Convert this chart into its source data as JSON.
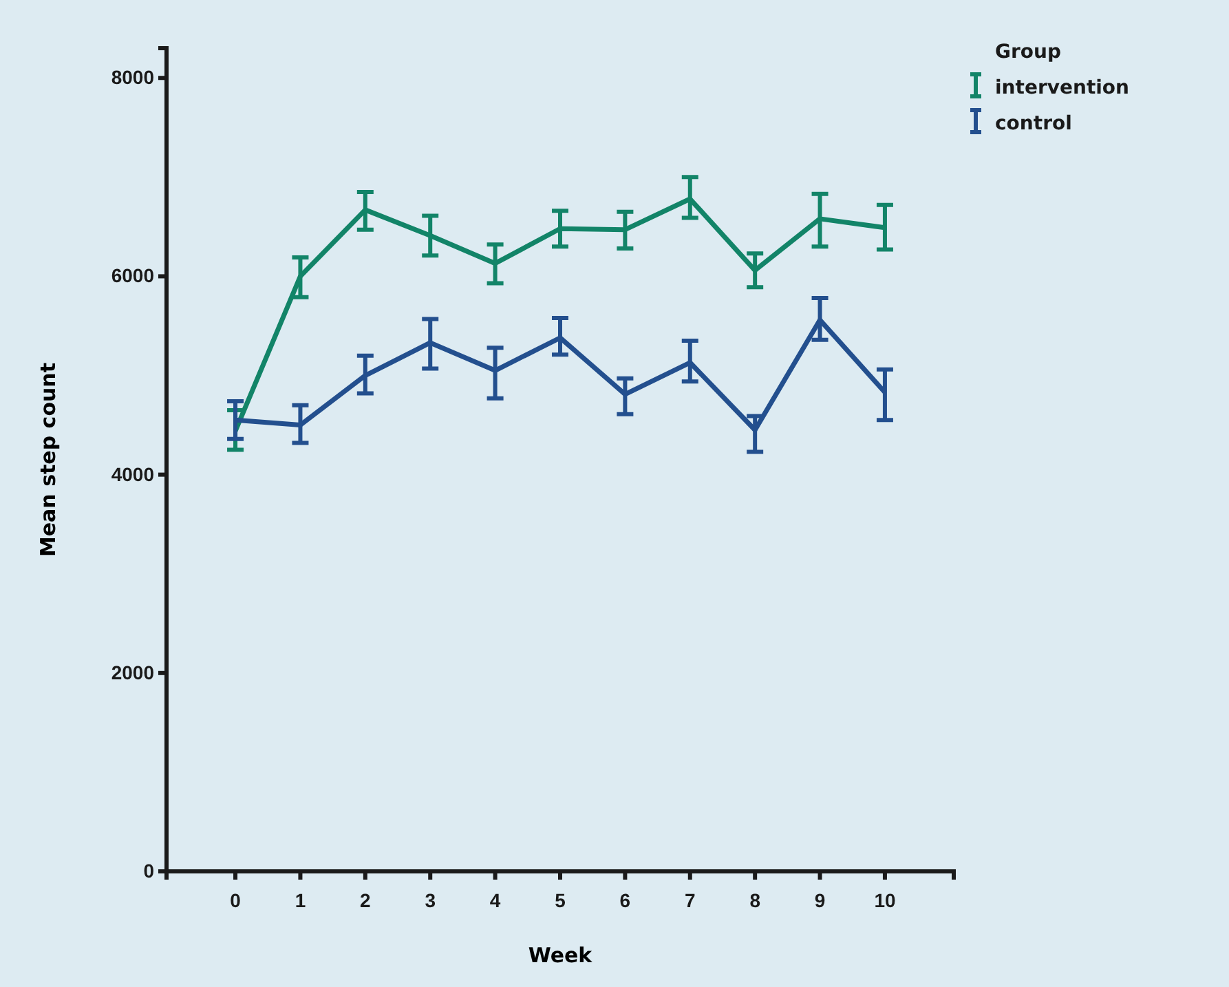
{
  "chart_data": {
    "type": "line",
    "xlabel": "Week",
    "ylabel": "Mean step count",
    "legend_title": "Group",
    "legend": "top right",
    "x": [
      0,
      1,
      2,
      3,
      4,
      5,
      6,
      7,
      8,
      9,
      10
    ],
    "xlim": [
      -1.06,
      11.06
    ],
    "xticks": [
      0,
      1,
      2,
      3,
      4,
      5,
      6,
      7,
      8,
      9,
      10
    ],
    "ylim": [
      0,
      8300
    ],
    "yticks": [
      0,
      2000,
      4000,
      6000,
      8000
    ],
    "grid": false,
    "marker": "none",
    "line_style": "solid",
    "series": [
      {
        "name": "intervention",
        "color": "#128468",
        "values": [
          4440,
          6000,
          6670,
          6410,
          6130,
          6480,
          6470,
          6780,
          6060,
          6580,
          6490
        ],
        "errors": [
          [
            4250,
            4650
          ],
          [
            5790,
            6190
          ],
          [
            6470,
            6850
          ],
          [
            6210,
            6610
          ],
          [
            5930,
            6320
          ],
          [
            6300,
            6660
          ],
          [
            6280,
            6650
          ],
          [
            6590,
            7000
          ],
          [
            5890,
            6230
          ],
          [
            6300,
            6830
          ],
          [
            6270,
            6720
          ]
        ]
      },
      {
        "name": "control",
        "color": "#234f8e",
        "values": [
          4550,
          4500,
          5000,
          5330,
          5050,
          5380,
          4810,
          5130,
          4450,
          5560,
          4830
        ],
        "errors": [
          [
            4360,
            4740
          ],
          [
            4320,
            4700
          ],
          [
            4820,
            5200
          ],
          [
            5070,
            5570
          ],
          [
            4770,
            5280
          ],
          [
            5210,
            5580
          ],
          [
            4610,
            4970
          ],
          [
            4940,
            5350
          ],
          [
            4230,
            4590
          ],
          [
            5360,
            5780
          ],
          [
            4550,
            5060
          ]
        ]
      }
    ]
  }
}
